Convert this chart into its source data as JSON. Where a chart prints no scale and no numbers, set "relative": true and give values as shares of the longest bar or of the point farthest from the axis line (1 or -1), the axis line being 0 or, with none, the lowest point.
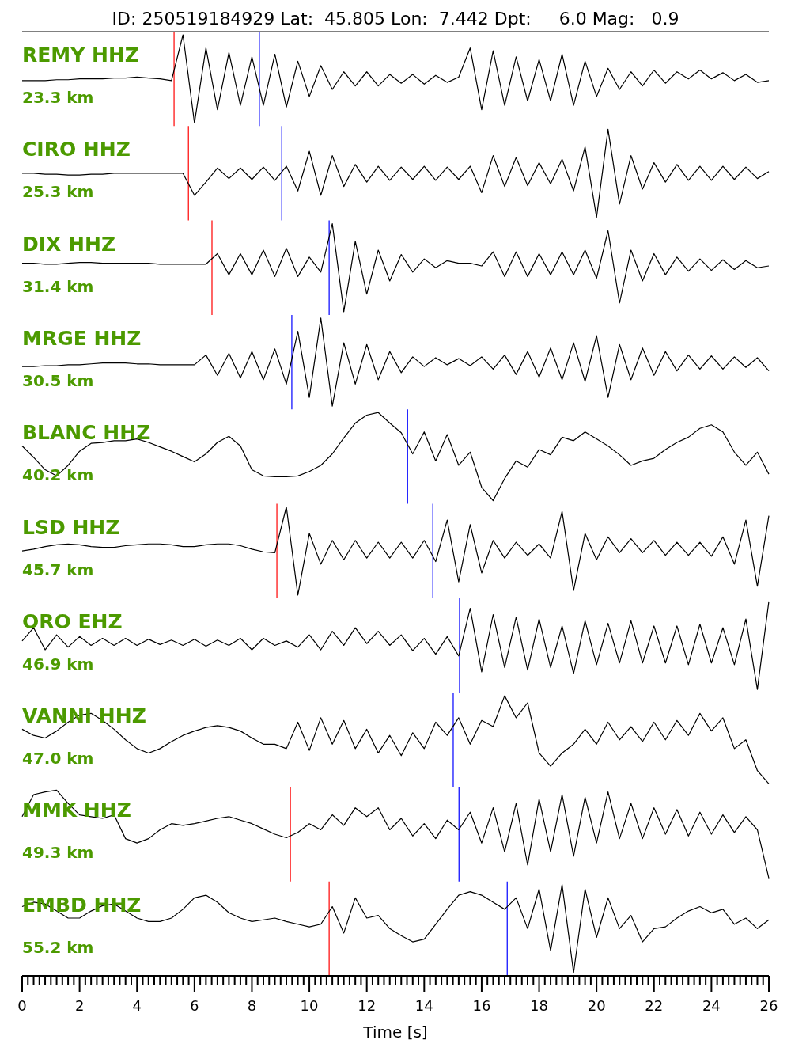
{
  "chart_data": [
    {
      "type": "line",
      "title": "ID: 250519184929 Lat:  45.805 Lon:  7.442 Dpt:     6.0 Mag:   0.9",
      "relative": true,
      "xlim": [
        0,
        26
      ],
      "tick_labels": false,
      "annotations": [
        "REMY HHZ",
        "23.3 km"
      ],
      "ref_lines": [
        {
          "axis": "x",
          "value": 5.29,
          "color": "#ff0000"
        },
        {
          "axis": "x",
          "value": 8.26,
          "color": "#0000ff"
        }
      ],
      "x": [
        0,
        0.4,
        0.8,
        1.2,
        1.6,
        2,
        2.4,
        2.8,
        3.2,
        3.6,
        4,
        4.4,
        4.8,
        5.2,
        5.6,
        6,
        6.4,
        6.8,
        7.2,
        7.6,
        8,
        8.4,
        8.8,
        9.2,
        9.6,
        10,
        10.4,
        10.8,
        11.2,
        11.6,
        12,
        12.4,
        12.8,
        13.2,
        13.6,
        14,
        14.4,
        14.8,
        15.2,
        15.6,
        16,
        16.4,
        16.8,
        17.2,
        17.6,
        18,
        18.4,
        18.8,
        19.2,
        19.6,
        20,
        20.4,
        20.8,
        21.2,
        21.6,
        22,
        22.4,
        22.8,
        23.2,
        23.6,
        24,
        24.4,
        24.8,
        25.2,
        25.6,
        26
      ],
      "series": [
        {
          "color": "#000000",
          "values": [
            0.48,
            0.48,
            0.48,
            0.49,
            0.49,
            0.5,
            0.5,
            0.5,
            0.51,
            0.51,
            0.52,
            0.51,
            0.5,
            0.48,
            1.0,
            0.0,
            0.85,
            0.15,
            0.8,
            0.2,
            0.75,
            0.2,
            0.78,
            0.18,
            0.7,
            0.3,
            0.65,
            0.38,
            0.58,
            0.42,
            0.58,
            0.42,
            0.55,
            0.45,
            0.55,
            0.44,
            0.54,
            0.46,
            0.52,
            0.85,
            0.15,
            0.82,
            0.2,
            0.75,
            0.25,
            0.72,
            0.25,
            0.78,
            0.2,
            0.7,
            0.3,
            0.62,
            0.38,
            0.58,
            0.42,
            0.6,
            0.45,
            0.58,
            0.5,
            0.6,
            0.5,
            0.57,
            0.48,
            0.55,
            0.46,
            0.48
          ]
        }
      ]
    },
    {
      "type": "line",
      "relative": true,
      "xlim": [
        0,
        26
      ],
      "tick_labels": false,
      "annotations": [
        "CIRO HHZ",
        "25.3 km"
      ],
      "ref_lines": [
        {
          "axis": "x",
          "value": 5.79,
          "color": "#ff0000"
        },
        {
          "axis": "x",
          "value": 9.04,
          "color": "#0000ff"
        }
      ],
      "x": [
        0,
        0.4,
        0.8,
        1.2,
        1.6,
        2,
        2.4,
        2.8,
        3.2,
        3.6,
        4,
        4.4,
        4.8,
        5.2,
        5.6,
        6,
        6.4,
        6.8,
        7.2,
        7.6,
        8,
        8.4,
        8.8,
        9.2,
        9.6,
        10,
        10.4,
        10.8,
        11.2,
        11.6,
        12,
        12.4,
        12.8,
        13.2,
        13.6,
        14,
        14.4,
        14.8,
        15.2,
        15.6,
        16,
        16.4,
        16.8,
        17.2,
        17.6,
        18,
        18.4,
        18.8,
        19.2,
        19.6,
        20,
        20.4,
        20.8,
        21.2,
        21.6,
        22,
        22.4,
        22.8,
        23.2,
        23.6,
        24,
        24.4,
        24.8,
        25.2,
        25.6,
        26
      ],
      "series": [
        {
          "color": "#000000",
          "values": [
            0.5,
            0.5,
            0.49,
            0.49,
            0.48,
            0.48,
            0.49,
            0.49,
            0.5,
            0.5,
            0.5,
            0.5,
            0.5,
            0.5,
            0.5,
            0.25,
            0.4,
            0.56,
            0.44,
            0.56,
            0.43,
            0.57,
            0.42,
            0.58,
            0.3,
            0.75,
            0.25,
            0.7,
            0.35,
            0.6,
            0.4,
            0.58,
            0.42,
            0.57,
            0.43,
            0.58,
            0.42,
            0.57,
            0.43,
            0.58,
            0.28,
            0.7,
            0.35,
            0.68,
            0.36,
            0.62,
            0.38,
            0.66,
            0.3,
            0.8,
            0.0,
            1.0,
            0.15,
            0.7,
            0.32,
            0.62,
            0.4,
            0.6,
            0.42,
            0.58,
            0.42,
            0.58,
            0.43,
            0.57,
            0.44,
            0.52
          ]
        }
      ]
    },
    {
      "type": "line",
      "relative": true,
      "xlim": [
        0,
        26
      ],
      "tick_labels": false,
      "annotations": [
        "DIX HHZ",
        "31.4 km"
      ],
      "ref_lines": [
        {
          "axis": "x",
          "value": 6.61,
          "color": "#ff0000"
        },
        {
          "axis": "x",
          "value": 10.69,
          "color": "#0000ff"
        }
      ],
      "x": [
        0,
        0.4,
        0.8,
        1.2,
        1.6,
        2,
        2.4,
        2.8,
        3.2,
        3.6,
        4,
        4.4,
        4.8,
        5.2,
        5.6,
        6,
        6.4,
        6.8,
        7.2,
        7.6,
        8,
        8.4,
        8.8,
        9.2,
        9.6,
        10,
        10.4,
        10.8,
        11.2,
        11.6,
        12,
        12.4,
        12.8,
        13.2,
        13.6,
        14,
        14.4,
        14.8,
        15.2,
        15.6,
        16,
        16.4,
        16.8,
        17.2,
        17.6,
        18,
        18.4,
        18.8,
        19.2,
        19.6,
        20,
        20.4,
        20.8,
        21.2,
        21.6,
        22,
        22.4,
        22.8,
        23.2,
        23.6,
        24,
        24.4,
        24.8,
        25.2,
        25.6,
        26
      ],
      "series": [
        {
          "color": "#000000",
          "values": [
            0.55,
            0.55,
            0.54,
            0.54,
            0.55,
            0.56,
            0.56,
            0.55,
            0.55,
            0.55,
            0.55,
            0.55,
            0.54,
            0.54,
            0.54,
            0.54,
            0.54,
            0.66,
            0.42,
            0.66,
            0.42,
            0.7,
            0.4,
            0.72,
            0.4,
            0.62,
            0.45,
            1.0,
            0.0,
            0.8,
            0.2,
            0.7,
            0.35,
            0.65,
            0.45,
            0.6,
            0.5,
            0.58,
            0.55,
            0.55,
            0.52,
            0.68,
            0.4,
            0.68,
            0.4,
            0.66,
            0.42,
            0.68,
            0.42,
            0.7,
            0.38,
            0.92,
            0.1,
            0.7,
            0.35,
            0.66,
            0.42,
            0.62,
            0.46,
            0.6,
            0.47,
            0.59,
            0.48,
            0.58,
            0.5,
            0.52
          ]
        }
      ]
    },
    {
      "type": "line",
      "relative": true,
      "xlim": [
        0,
        26
      ],
      "tick_labels": false,
      "annotations": [
        "MRGE HHZ",
        "30.5 km"
      ],
      "ref_lines": [
        {
          "axis": "x",
          "value": 9.39,
          "color": "#0000ff"
        }
      ],
      "x": [
        0,
        0.4,
        0.8,
        1.2,
        1.6,
        2,
        2.4,
        2.8,
        3.2,
        3.6,
        4,
        4.4,
        4.8,
        5.2,
        5.6,
        6,
        6.4,
        6.8,
        7.2,
        7.6,
        8,
        8.4,
        8.8,
        9.2,
        9.6,
        10,
        10.4,
        10.8,
        11.2,
        11.6,
        12,
        12.4,
        12.8,
        13.2,
        13.6,
        14,
        14.4,
        14.8,
        15.2,
        15.6,
        16,
        16.4,
        16.8,
        17.2,
        17.6,
        18,
        18.4,
        18.8,
        19.2,
        19.6,
        20,
        20.4,
        20.8,
        21.2,
        21.6,
        22,
        22.4,
        22.8,
        23.2,
        23.6,
        24,
        24.4,
        24.8,
        25.2,
        25.6,
        26
      ],
      "series": [
        {
          "color": "#000000",
          "values": [
            0.45,
            0.45,
            0.46,
            0.46,
            0.47,
            0.47,
            0.48,
            0.49,
            0.49,
            0.49,
            0.48,
            0.48,
            0.47,
            0.47,
            0.47,
            0.47,
            0.58,
            0.35,
            0.6,
            0.32,
            0.62,
            0.3,
            0.65,
            0.25,
            0.85,
            0.1,
            1.0,
            0.0,
            0.72,
            0.25,
            0.7,
            0.3,
            0.62,
            0.38,
            0.56,
            0.45,
            0.55,
            0.47,
            0.54,
            0.46,
            0.56,
            0.42,
            0.58,
            0.36,
            0.62,
            0.33,
            0.66,
            0.3,
            0.72,
            0.28,
            0.8,
            0.1,
            0.7,
            0.3,
            0.66,
            0.35,
            0.62,
            0.4,
            0.58,
            0.42,
            0.57,
            0.42,
            0.56,
            0.44,
            0.55,
            0.4
          ]
        }
      ]
    },
    {
      "type": "line",
      "relative": true,
      "xlim": [
        0,
        26
      ],
      "tick_labels": false,
      "annotations": [
        "BLANC HHZ",
        "40.2 km"
      ],
      "ref_lines": [
        {
          "axis": "x",
          "value": 13.42,
          "color": "#0000ff"
        }
      ],
      "x": [
        0,
        0.4,
        0.8,
        1.2,
        1.6,
        2,
        2.4,
        2.8,
        3.2,
        3.6,
        4,
        4.4,
        4.8,
        5.2,
        5.6,
        6,
        6.4,
        6.8,
        7.2,
        7.6,
        8,
        8.4,
        8.8,
        9.2,
        9.6,
        10,
        10.4,
        10.8,
        11.2,
        11.6,
        12,
        12.4,
        12.8,
        13.2,
        13.6,
        14,
        14.4,
        14.8,
        15.2,
        15.6,
        16,
        16.4,
        16.8,
        17.2,
        17.6,
        18,
        18.4,
        18.8,
        19.2,
        19.6,
        20,
        20.4,
        20.8,
        21.2,
        21.6,
        22,
        22.4,
        22.8,
        23.2,
        23.6,
        24,
        24.4,
        24.8,
        25.2,
        25.6,
        26
      ],
      "series": [
        {
          "color": "#000000",
          "values": [
            0.62,
            0.49,
            0.35,
            0.28,
            0.4,
            0.56,
            0.65,
            0.66,
            0.68,
            0.68,
            0.7,
            0.66,
            0.61,
            0.56,
            0.5,
            0.44,
            0.53,
            0.66,
            0.73,
            0.62,
            0.35,
            0.28,
            0.27,
            0.27,
            0.28,
            0.33,
            0.4,
            0.53,
            0.71,
            0.88,
            0.97,
            1.0,
            0.88,
            0.77,
            0.53,
            0.78,
            0.45,
            0.75,
            0.4,
            0.55,
            0.15,
            0.0,
            0.25,
            0.45,
            0.38,
            0.58,
            0.52,
            0.72,
            0.68,
            0.78,
            0.7,
            0.62,
            0.52,
            0.4,
            0.45,
            0.48,
            0.58,
            0.66,
            0.72,
            0.82,
            0.86,
            0.78,
            0.55,
            0.4,
            0.55,
            0.3
          ]
        }
      ]
    },
    {
      "type": "line",
      "relative": true,
      "xlim": [
        0,
        26
      ],
      "tick_labels": false,
      "annotations": [
        "LSD HHZ",
        "45.7 km"
      ],
      "ref_lines": [
        {
          "axis": "x",
          "value": 8.87,
          "color": "#ff0000"
        },
        {
          "axis": "x",
          "value": 14.3,
          "color": "#0000ff"
        }
      ],
      "x": [
        0,
        0.4,
        0.8,
        1.2,
        1.6,
        2,
        2.4,
        2.8,
        3.2,
        3.6,
        4,
        4.4,
        4.8,
        5.2,
        5.6,
        6,
        6.4,
        6.8,
        7.2,
        7.6,
        8,
        8.4,
        8.8,
        9.2,
        9.6,
        10,
        10.4,
        10.8,
        11.2,
        11.6,
        12,
        12.4,
        12.8,
        13.2,
        13.6,
        14,
        14.4,
        14.8,
        15.2,
        15.6,
        16,
        16.4,
        16.8,
        17.2,
        17.6,
        18,
        18.4,
        18.8,
        19.2,
        19.6,
        20,
        20.4,
        20.8,
        21.2,
        21.6,
        22,
        22.4,
        22.8,
        23.2,
        23.6,
        24,
        24.4,
        24.8,
        25.2,
        25.6,
        26
      ],
      "series": [
        {
          "color": "#000000",
          "values": [
            0.5,
            0.52,
            0.55,
            0.57,
            0.58,
            0.57,
            0.55,
            0.54,
            0.54,
            0.56,
            0.57,
            0.58,
            0.58,
            0.57,
            0.55,
            0.55,
            0.57,
            0.58,
            0.58,
            0.56,
            0.52,
            0.49,
            0.48,
            1.0,
            0.0,
            0.7,
            0.35,
            0.62,
            0.4,
            0.62,
            0.42,
            0.6,
            0.42,
            0.6,
            0.42,
            0.62,
            0.38,
            0.85,
            0.15,
            0.8,
            0.25,
            0.62,
            0.42,
            0.6,
            0.45,
            0.58,
            0.42,
            0.95,
            0.05,
            0.7,
            0.4,
            0.66,
            0.48,
            0.64,
            0.48,
            0.62,
            0.45,
            0.6,
            0.45,
            0.6,
            0.44,
            0.66,
            0.35,
            0.85,
            0.1,
            0.9
          ]
        }
      ]
    },
    {
      "type": "line",
      "relative": true,
      "xlim": [
        0,
        26
      ],
      "tick_labels": false,
      "annotations": [
        "ORO EHZ",
        "46.9 km"
      ],
      "ref_lines": [
        {
          "axis": "x",
          "value": 15.23,
          "color": "#0000ff"
        }
      ],
      "x": [
        0,
        0.4,
        0.8,
        1.2,
        1.6,
        2,
        2.4,
        2.8,
        3.2,
        3.6,
        4,
        4.4,
        4.8,
        5.2,
        5.6,
        6,
        6.4,
        6.8,
        7.2,
        7.6,
        8,
        8.4,
        8.8,
        9.2,
        9.6,
        10,
        10.4,
        10.8,
        11.2,
        11.6,
        12,
        12.4,
        12.8,
        13.2,
        13.6,
        14,
        14.4,
        14.8,
        15.2,
        15.6,
        16,
        16.4,
        16.8,
        17.2,
        17.6,
        18,
        18.4,
        18.8,
        19.2,
        19.6,
        20,
        20.4,
        20.8,
        21.2,
        21.6,
        22,
        22.4,
        22.8,
        23.2,
        23.6,
        24,
        24.4,
        24.8,
        25.2,
        25.6,
        26
      ],
      "series": [
        {
          "color": "#000000",
          "values": [
            0.55,
            0.7,
            0.45,
            0.62,
            0.48,
            0.6,
            0.5,
            0.58,
            0.5,
            0.58,
            0.5,
            0.57,
            0.51,
            0.56,
            0.5,
            0.57,
            0.49,
            0.56,
            0.5,
            0.58,
            0.45,
            0.58,
            0.5,
            0.55,
            0.48,
            0.62,
            0.45,
            0.66,
            0.5,
            0.7,
            0.52,
            0.66,
            0.5,
            0.62,
            0.44,
            0.58,
            0.4,
            0.6,
            0.38,
            0.92,
            0.2,
            0.85,
            0.25,
            0.82,
            0.22,
            0.8,
            0.25,
            0.72,
            0.18,
            0.78,
            0.28,
            0.75,
            0.3,
            0.78,
            0.3,
            0.72,
            0.3,
            0.72,
            0.28,
            0.74,
            0.3,
            0.7,
            0.28,
            0.8,
            0.0,
            1.0
          ]
        }
      ]
    },
    {
      "type": "line",
      "relative": true,
      "xlim": [
        0,
        26
      ],
      "tick_labels": false,
      "annotations": [
        "VANNI HHZ",
        "47.0 km"
      ],
      "ref_lines": [
        {
          "axis": "x",
          "value": 15.01,
          "color": "#0000ff"
        }
      ],
      "x": [
        0,
        0.4,
        0.8,
        1.2,
        1.6,
        2,
        2.4,
        2.8,
        3.2,
        3.6,
        4,
        4.4,
        4.8,
        5.2,
        5.6,
        6,
        6.4,
        6.8,
        7.2,
        7.6,
        8,
        8.4,
        8.8,
        9.2,
        9.6,
        10,
        10.4,
        10.8,
        11.2,
        11.6,
        12,
        12.4,
        12.8,
        13.2,
        13.6,
        14,
        14.4,
        14.8,
        15.2,
        15.6,
        16,
        16.4,
        16.8,
        17.2,
        17.6,
        18,
        18.4,
        18.8,
        19.2,
        19.6,
        20,
        20.4,
        20.8,
        21.2,
        21.6,
        22,
        22.4,
        22.8,
        23.2,
        23.6,
        24,
        24.4,
        24.8,
        25.2,
        25.6,
        26
      ],
      "series": [
        {
          "color": "#000000",
          "values": [
            0.62,
            0.55,
            0.52,
            0.6,
            0.7,
            0.78,
            0.8,
            0.72,
            0.62,
            0.5,
            0.4,
            0.35,
            0.4,
            0.48,
            0.55,
            0.6,
            0.64,
            0.66,
            0.64,
            0.6,
            0.52,
            0.45,
            0.45,
            0.4,
            0.7,
            0.38,
            0.75,
            0.45,
            0.72,
            0.4,
            0.62,
            0.35,
            0.55,
            0.32,
            0.58,
            0.4,
            0.7,
            0.55,
            0.75,
            0.45,
            0.72,
            0.65,
            1.0,
            0.75,
            0.92,
            0.35,
            0.2,
            0.35,
            0.45,
            0.62,
            0.45,
            0.7,
            0.5,
            0.65,
            0.48,
            0.7,
            0.5,
            0.72,
            0.55,
            0.8,
            0.6,
            0.75,
            0.4,
            0.5,
            0.15,
            0.0
          ]
        }
      ]
    },
    {
      "type": "line",
      "relative": true,
      "xlim": [
        0,
        26
      ],
      "tick_labels": false,
      "annotations": [
        "MMK HHZ",
        "49.3 km"
      ],
      "ref_lines": [
        {
          "axis": "x",
          "value": 9.34,
          "color": "#ff0000"
        },
        {
          "axis": "x",
          "value": 15.21,
          "color": "#0000ff"
        }
      ],
      "x": [
        0,
        0.4,
        0.8,
        1.2,
        1.6,
        2,
        2.4,
        2.8,
        3.2,
        3.6,
        4,
        4.4,
        4.8,
        5.2,
        5.6,
        6,
        6.4,
        6.8,
        7.2,
        7.6,
        8,
        8.4,
        8.8,
        9.2,
        9.6,
        10,
        10.4,
        10.8,
        11.2,
        11.6,
        12,
        12.4,
        12.8,
        13.2,
        13.6,
        14,
        14.4,
        14.8,
        15.2,
        15.6,
        16,
        16.4,
        16.8,
        17.2,
        17.6,
        18,
        18.4,
        18.8,
        19.2,
        19.6,
        20,
        20.4,
        20.8,
        21.2,
        21.6,
        22,
        22.4,
        22.8,
        23.2,
        23.6,
        24,
        24.4,
        24.8,
        25.2,
        25.6,
        26
      ],
      "series": [
        {
          "color": "#000000",
          "values": [
            0.7,
            0.95,
            0.98,
            1.0,
            0.85,
            0.72,
            0.7,
            0.68,
            0.72,
            0.45,
            0.4,
            0.45,
            0.55,
            0.62,
            0.6,
            0.62,
            0.65,
            0.68,
            0.7,
            0.66,
            0.62,
            0.56,
            0.5,
            0.46,
            0.52,
            0.62,
            0.55,
            0.72,
            0.6,
            0.8,
            0.7,
            0.8,
            0.55,
            0.68,
            0.48,
            0.62,
            0.45,
            0.66,
            0.55,
            0.75,
            0.4,
            0.8,
            0.3,
            0.85,
            0.15,
            0.9,
            0.3,
            0.95,
            0.25,
            0.92,
            0.4,
            0.98,
            0.45,
            0.85,
            0.45,
            0.8,
            0.5,
            0.78,
            0.48,
            0.75,
            0.5,
            0.72,
            0.52,
            0.7,
            0.55,
            0.0
          ]
        }
      ]
    },
    {
      "type": "line",
      "relative": true,
      "xlim": [
        0,
        26
      ],
      "tick_labels": "x",
      "xlabel": "Time [s]",
      "annotations": [
        "EMBD HHZ",
        "55.2 km"
      ],
      "ref_lines": [
        {
          "axis": "x",
          "value": 10.69,
          "color": "#ff0000"
        },
        {
          "axis": "x",
          "value": 16.89,
          "color": "#0000ff"
        }
      ],
      "xticks": [
        0,
        {
          "value": 0.2,
          "label": null
        },
        {
          "value": 0.4,
          "label": null
        },
        {
          "value": 0.6,
          "label": null
        },
        {
          "value": 0.8,
          "label": null
        },
        {
          "value": 1,
          "label": null
        },
        {
          "value": 1.2,
          "label": null
        },
        {
          "value": 1.4,
          "label": null
        },
        {
          "value": 1.6,
          "label": null
        },
        {
          "value": 1.8,
          "label": null
        },
        2,
        {
          "value": 2.2,
          "label": null
        },
        {
          "value": 2.4,
          "label": null
        },
        {
          "value": 2.6,
          "label": null
        },
        {
          "value": 2.8,
          "label": null
        },
        {
          "value": 3,
          "label": null
        },
        {
          "value": 3.2,
          "label": null
        },
        {
          "value": 3.4,
          "label": null
        },
        {
          "value": 3.6,
          "label": null
        },
        {
          "value": 3.8,
          "label": null
        },
        4,
        {
          "value": 4.2,
          "label": null
        },
        {
          "value": 4.4,
          "label": null
        },
        {
          "value": 4.6,
          "label": null
        },
        {
          "value": 4.8,
          "label": null
        },
        {
          "value": 5,
          "label": null
        },
        {
          "value": 5.2,
          "label": null
        },
        {
          "value": 5.4,
          "label": null
        },
        {
          "value": 5.6,
          "label": null
        },
        {
          "value": 5.8,
          "label": null
        },
        6,
        {
          "value": 6.2,
          "label": null
        },
        {
          "value": 6.4,
          "label": null
        },
        {
          "value": 6.6,
          "label": null
        },
        {
          "value": 6.8,
          "label": null
        },
        {
          "value": 7,
          "label": null
        },
        {
          "value": 7.2,
          "label": null
        },
        {
          "value": 7.4,
          "label": null
        },
        {
          "value": 7.6,
          "label": null
        },
        {
          "value": 7.8,
          "label": null
        },
        8,
        {
          "value": 8.2,
          "label": null
        },
        {
          "value": 8.4,
          "label": null
        },
        {
          "value": 8.6,
          "label": null
        },
        {
          "value": 8.8,
          "label": null
        },
        {
          "value": 9,
          "label": null
        },
        {
          "value": 9.2,
          "label": null
        },
        {
          "value": 9.4,
          "label": null
        },
        {
          "value": 9.6,
          "label": null
        },
        {
          "value": 9.8,
          "label": null
        },
        10,
        {
          "value": 10.2,
          "label": null
        },
        {
          "value": 10.4,
          "label": null
        },
        {
          "value": 10.6,
          "label": null
        },
        {
          "value": 10.8,
          "label": null
        },
        {
          "value": 11,
          "label": null
        },
        {
          "value": 11.2,
          "label": null
        },
        {
          "value": 11.4,
          "label": null
        },
        {
          "value": 11.6,
          "label": null
        },
        {
          "value": 11.8,
          "label": null
        },
        12,
        {
          "value": 12.2,
          "label": null
        },
        {
          "value": 12.4,
          "label": null
        },
        {
          "value": 12.6,
          "label": null
        },
        {
          "value": 12.8,
          "label": null
        },
        {
          "value": 13,
          "label": null
        },
        {
          "value": 13.2,
          "label": null
        },
        {
          "value": 13.4,
          "label": null
        },
        {
          "value": 13.6,
          "label": null
        },
        {
          "value": 13.8,
          "label": null
        },
        14,
        {
          "value": 14.2,
          "label": null
        },
        {
          "value": 14.4,
          "label": null
        },
        {
          "value": 14.6,
          "label": null
        },
        {
          "value": 14.8,
          "label": null
        },
        {
          "value": 15,
          "label": null
        },
        {
          "value": 15.2,
          "label": null
        },
        {
          "value": 15.4,
          "label": null
        },
        {
          "value": 15.6,
          "label": null
        },
        {
          "value": 15.8,
          "label": null
        },
        16,
        {
          "value": 16.2,
          "label": null
        },
        {
          "value": 16.4,
          "label": null
        },
        {
          "value": 16.6,
          "label": null
        },
        {
          "value": 16.8,
          "label": null
        },
        {
          "value": 17,
          "label": null
        },
        {
          "value": 17.2,
          "label": null
        },
        {
          "value": 17.4,
          "label": null
        },
        {
          "value": 17.6,
          "label": null
        },
        {
          "value": 17.8,
          "label": null
        },
        18,
        {
          "value": 18.2,
          "label": null
        },
        {
          "value": 18.4,
          "label": null
        },
        {
          "value": 18.6,
          "label": null
        },
        {
          "value": 18.8,
          "label": null
        },
        {
          "value": 19,
          "label": null
        },
        {
          "value": 19.2,
          "label": null
        },
        {
          "value": 19.4,
          "label": null
        },
        {
          "value": 19.6,
          "label": null
        },
        {
          "value": 19.8,
          "label": null
        },
        20,
        {
          "value": 20.2,
          "label": null
        },
        {
          "value": 20.4,
          "label": null
        },
        {
          "value": 20.6,
          "label": null
        },
        {
          "value": 20.8,
          "label": null
        },
        {
          "value": 21,
          "label": null
        },
        {
          "value": 21.2,
          "label": null
        },
        {
          "value": 21.4,
          "label": null
        },
        {
          "value": 21.6,
          "label": null
        },
        {
          "value": 21.8,
          "label": null
        },
        22,
        {
          "value": 22.2,
          "label": null
        },
        {
          "value": 22.4,
          "label": null
        },
        {
          "value": 22.6,
          "label": null
        },
        {
          "value": 22.8,
          "label": null
        },
        {
          "value": 23,
          "label": null
        },
        {
          "value": 23.2,
          "label": null
        },
        {
          "value": 23.4,
          "label": null
        },
        {
          "value": 23.6,
          "label": null
        },
        {
          "value": 23.8,
          "label": null
        },
        24,
        {
          "value": 24.2,
          "label": null
        },
        {
          "value": 24.4,
          "label": null
        },
        {
          "value": 24.6,
          "label": null
        },
        {
          "value": 24.8,
          "label": null
        },
        {
          "value": 25,
          "label": null
        },
        {
          "value": 25.2,
          "label": null
        },
        {
          "value": 25.4,
          "label": null
        },
        {
          "value": 25.6,
          "label": null
        },
        {
          "value": 25.8,
          "label": null
        },
        26
      ],
      "x": [
        0,
        0.4,
        0.8,
        1.2,
        1.6,
        2,
        2.4,
        2.8,
        3.2,
        3.6,
        4,
        4.4,
        4.8,
        5.2,
        5.6,
        6,
        6.4,
        6.8,
        7.2,
        7.6,
        8,
        8.4,
        8.8,
        9.2,
        9.6,
        10,
        10.4,
        10.8,
        11.2,
        11.6,
        12,
        12.4,
        12.8,
        13.2,
        13.6,
        14,
        14.4,
        14.8,
        15.2,
        15.6,
        16,
        16.4,
        16.8,
        17.2,
        17.6,
        18,
        18.4,
        18.8,
        19.2,
        19.6,
        20,
        20.4,
        20.8,
        21.2,
        21.6,
        22,
        22.4,
        22.8,
        23.2,
        23.6,
        24,
        24.4,
        24.8,
        25.2,
        25.6,
        26
      ],
      "series": [
        {
          "color": "#000000",
          "values": [
            0.75,
            0.8,
            0.78,
            0.7,
            0.62,
            0.62,
            0.7,
            0.76,
            0.78,
            0.7,
            0.62,
            0.58,
            0.58,
            0.62,
            0.72,
            0.85,
            0.88,
            0.8,
            0.68,
            0.62,
            0.58,
            0.6,
            0.62,
            0.58,
            0.55,
            0.52,
            0.55,
            0.75,
            0.45,
            0.85,
            0.62,
            0.65,
            0.5,
            0.42,
            0.35,
            0.38,
            0.55,
            0.72,
            0.88,
            0.92,
            0.88,
            0.8,
            0.72,
            0.85,
            0.5,
            0.95,
            0.25,
            1.0,
            0.0,
            0.95,
            0.4,
            0.85,
            0.5,
            0.65,
            0.35,
            0.5,
            0.52,
            0.62,
            0.7,
            0.75,
            0.68,
            0.72,
            0.55,
            0.62,
            0.5,
            0.6
          ]
        }
      ]
    }
  ]
}
